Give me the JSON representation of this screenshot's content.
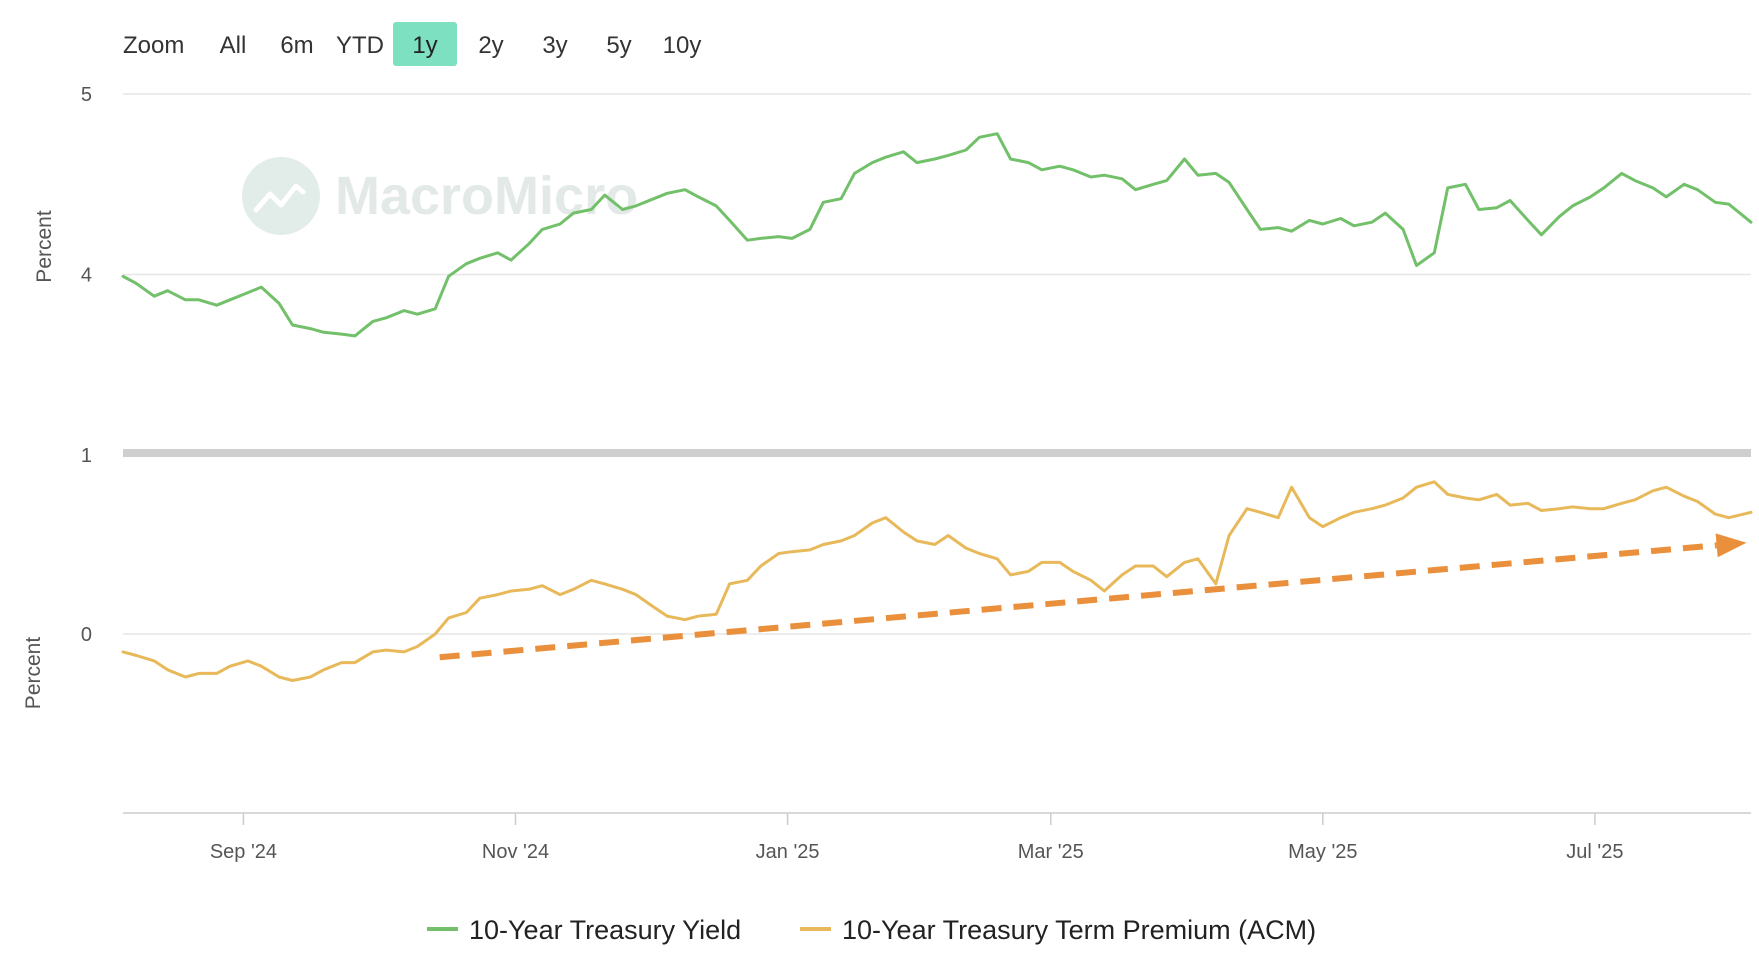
{
  "range_selector": {
    "label": "Zoom",
    "buttons": [
      {
        "label": "All",
        "active": false
      },
      {
        "label": "6m",
        "active": false
      },
      {
        "label": "YTD",
        "active": false
      },
      {
        "label": "1y",
        "active": true
      },
      {
        "label": "2y",
        "active": false
      },
      {
        "label": "3y",
        "active": false
      },
      {
        "label": "5y",
        "active": false
      },
      {
        "label": "10y",
        "active": false
      }
    ],
    "active_color": "#7de0c0"
  },
  "watermark": {
    "text": "MacroMicro",
    "color": "#dfe7e4",
    "icon": "chart-line-logo-icon"
  },
  "chart_data": [
    {
      "type": "line",
      "pane": "top",
      "ylabel": "Percent",
      "ylim": [
        3,
        5
      ],
      "yticks": [
        "5",
        "4"
      ],
      "xlim": [
        "2024-08-05",
        "2025-08-05"
      ],
      "grid": true,
      "series": [
        {
          "name": "10-Year Treasury Yield",
          "color": "#72c06a",
          "points": [
            [
              "2024-08-05",
              3.99
            ],
            [
              "2024-08-08",
              3.95
            ],
            [
              "2024-08-12",
              3.88
            ],
            [
              "2024-08-15",
              3.91
            ],
            [
              "2024-08-19",
              3.86
            ],
            [
              "2024-08-22",
              3.86
            ],
            [
              "2024-08-26",
              3.83
            ],
            [
              "2024-08-29",
              3.86
            ],
            [
              "2024-09-02",
              3.9
            ],
            [
              "2024-09-05",
              3.93
            ],
            [
              "2024-09-09",
              3.84
            ],
            [
              "2024-09-12",
              3.72
            ],
            [
              "2024-09-16",
              3.7
            ],
            [
              "2024-09-19",
              3.68
            ],
            [
              "2024-09-23",
              3.67
            ],
            [
              "2024-09-26",
              3.66
            ],
            [
              "2024-09-30",
              3.74
            ],
            [
              "2024-10-03",
              3.76
            ],
            [
              "2024-10-07",
              3.8
            ],
            [
              "2024-10-10",
              3.78
            ],
            [
              "2024-10-14",
              3.81
            ],
            [
              "2024-10-17",
              3.99
            ],
            [
              "2024-10-21",
              4.06
            ],
            [
              "2024-10-24",
              4.09
            ],
            [
              "2024-10-28",
              4.12
            ],
            [
              "2024-10-31",
              4.08
            ],
            [
              "2024-11-04",
              4.17
            ],
            [
              "2024-11-07",
              4.25
            ],
            [
              "2024-11-11",
              4.28
            ],
            [
              "2024-11-14",
              4.34
            ],
            [
              "2024-11-18",
              4.36
            ],
            [
              "2024-11-21",
              4.44
            ],
            [
              "2024-11-25",
              4.36
            ],
            [
              "2024-11-28",
              4.38
            ],
            [
              "2024-12-02",
              4.42
            ],
            [
              "2024-12-05",
              4.45
            ],
            [
              "2024-12-09",
              4.47
            ],
            [
              "2024-12-12",
              4.43
            ],
            [
              "2024-12-16",
              4.38
            ],
            [
              "2024-12-19",
              4.3
            ],
            [
              "2024-12-23",
              4.19
            ],
            [
              "2024-12-26",
              4.2
            ],
            [
              "2024-12-30",
              4.21
            ],
            [
              "2025-01-02",
              4.2
            ],
            [
              "2025-01-06",
              4.25
            ],
            [
              "2025-01-09",
              4.4
            ],
            [
              "2025-01-13",
              4.42
            ],
            [
              "2025-01-16",
              4.56
            ],
            [
              "2025-01-20",
              4.62
            ],
            [
              "2025-01-23",
              4.65
            ],
            [
              "2025-01-27",
              4.68
            ],
            [
              "2025-01-30",
              4.62
            ],
            [
              "2025-02-03",
              4.64
            ],
            [
              "2025-02-06",
              4.66
            ],
            [
              "2025-02-10",
              4.69
            ],
            [
              "2025-02-13",
              4.76
            ],
            [
              "2025-02-17",
              4.78
            ],
            [
              "2025-02-20",
              4.64
            ],
            [
              "2025-02-24",
              4.62
            ],
            [
              "2025-02-27",
              4.58
            ],
            [
              "2025-03-03",
              4.6
            ],
            [
              "2025-03-06",
              4.58
            ],
            [
              "2025-03-10",
              4.54
            ],
            [
              "2025-03-13",
              4.55
            ],
            [
              "2025-03-17",
              4.53
            ],
            [
              "2025-03-20",
              4.47
            ],
            [
              "2025-03-24",
              4.5
            ],
            [
              "2025-03-27",
              4.52
            ],
            [
              "2025-03-31",
              4.64
            ],
            [
              "2025-04-03",
              4.55
            ],
            [
              "2025-04-07",
              4.56
            ],
            [
              "2025-04-10",
              4.51
            ],
            [
              "2025-04-14",
              4.36
            ],
            [
              "2025-04-17",
              4.25
            ],
            [
              "2025-04-21",
              4.26
            ],
            [
              "2025-04-24",
              4.24
            ],
            [
              "2025-04-28",
              4.3
            ],
            [
              "2025-05-01",
              4.28
            ],
            [
              "2025-05-05",
              4.31
            ],
            [
              "2025-05-08",
              4.27
            ],
            [
              "2025-05-12",
              4.29
            ],
            [
              "2025-05-15",
              4.34
            ],
            [
              "2025-05-19",
              4.25
            ],
            [
              "2025-05-22",
              4.05
            ],
            [
              "2025-05-26",
              4.12
            ],
            [
              "2025-05-29",
              4.48
            ],
            [
              "2025-06-02",
              4.5
            ],
            [
              "2025-06-05",
              4.36
            ],
            [
              "2025-06-09",
              4.37
            ],
            [
              "2025-06-12",
              4.41
            ],
            [
              "2025-06-16",
              4.3
            ],
            [
              "2025-06-19",
              4.22
            ],
            [
              "2025-06-23",
              4.32
            ],
            [
              "2025-06-26",
              4.38
            ],
            [
              "2025-06-30",
              4.43
            ],
            [
              "2025-07-03",
              4.48
            ],
            [
              "2025-07-07",
              4.56
            ],
            [
              "2025-07-10",
              4.52
            ],
            [
              "2025-07-14",
              4.48
            ],
            [
              "2025-07-17",
              4.43
            ],
            [
              "2025-07-21",
              4.5
            ],
            [
              "2025-07-24",
              4.47
            ],
            [
              "2025-07-28",
              4.4
            ],
            [
              "2025-07-31",
              4.39
            ],
            [
              "2025-08-05",
              4.29
            ]
          ]
        }
      ]
    },
    {
      "type": "line",
      "pane": "bottom",
      "ylabel": "Percent",
      "ylim": [
        -1,
        1
      ],
      "yticks": [
        "1",
        "0"
      ],
      "xlim": [
        "2024-08-05",
        "2025-08-05"
      ],
      "xticks": [
        "Sep '24",
        "Nov '24",
        "Jan '25",
        "Mar '25",
        "May '25",
        "Jul '25"
      ],
      "grid": true,
      "series": [
        {
          "name": "10-Year Treasury Term Premium (ACM)",
          "color": "#e8b95a",
          "points": [
            [
              "2024-08-05",
              -0.1
            ],
            [
              "2024-08-08",
              -0.12
            ],
            [
              "2024-08-12",
              -0.15
            ],
            [
              "2024-08-15",
              -0.2
            ],
            [
              "2024-08-19",
              -0.24
            ],
            [
              "2024-08-22",
              -0.22
            ],
            [
              "2024-08-26",
              -0.22
            ],
            [
              "2024-08-29",
              -0.18
            ],
            [
              "2024-09-02",
              -0.15
            ],
            [
              "2024-09-05",
              -0.18
            ],
            [
              "2024-09-09",
              -0.24
            ],
            [
              "2024-09-12",
              -0.26
            ],
            [
              "2024-09-16",
              -0.24
            ],
            [
              "2024-09-19",
              -0.2
            ],
            [
              "2024-09-23",
              -0.16
            ],
            [
              "2024-09-26",
              -0.16
            ],
            [
              "2024-09-30",
              -0.1
            ],
            [
              "2024-10-03",
              -0.09
            ],
            [
              "2024-10-07",
              -0.1
            ],
            [
              "2024-10-10",
              -0.07
            ],
            [
              "2024-10-14",
              0.0
            ],
            [
              "2024-10-17",
              0.09
            ],
            [
              "2024-10-21",
              0.12
            ],
            [
              "2024-10-24",
              0.2
            ],
            [
              "2024-10-28",
              0.22
            ],
            [
              "2024-10-31",
              0.24
            ],
            [
              "2024-11-04",
              0.25
            ],
            [
              "2024-11-07",
              0.27
            ],
            [
              "2024-11-11",
              0.22
            ],
            [
              "2024-11-14",
              0.25
            ],
            [
              "2024-11-18",
              0.3
            ],
            [
              "2024-11-21",
              0.28
            ],
            [
              "2024-11-25",
              0.25
            ],
            [
              "2024-11-28",
              0.22
            ],
            [
              "2024-12-02",
              0.15
            ],
            [
              "2024-12-05",
              0.1
            ],
            [
              "2024-12-09",
              0.08
            ],
            [
              "2024-12-12",
              0.1
            ],
            [
              "2024-12-16",
              0.11
            ],
            [
              "2024-12-19",
              0.28
            ],
            [
              "2024-12-23",
              0.3
            ],
            [
              "2024-12-26",
              0.38
            ],
            [
              "2024-12-30",
              0.45
            ],
            [
              "2025-01-02",
              0.46
            ],
            [
              "2025-01-06",
              0.47
            ],
            [
              "2025-01-09",
              0.5
            ],
            [
              "2025-01-13",
              0.52
            ],
            [
              "2025-01-16",
              0.55
            ],
            [
              "2025-01-20",
              0.62
            ],
            [
              "2025-01-23",
              0.65
            ],
            [
              "2025-01-27",
              0.57
            ],
            [
              "2025-01-30",
              0.52
            ],
            [
              "2025-02-03",
              0.5
            ],
            [
              "2025-02-06",
              0.55
            ],
            [
              "2025-02-10",
              0.48
            ],
            [
              "2025-02-13",
              0.45
            ],
            [
              "2025-02-17",
              0.42
            ],
            [
              "2025-02-20",
              0.33
            ],
            [
              "2025-02-24",
              0.35
            ],
            [
              "2025-02-27",
              0.4
            ],
            [
              "2025-03-03",
              0.4
            ],
            [
              "2025-03-06",
              0.35
            ],
            [
              "2025-03-10",
              0.3
            ],
            [
              "2025-03-13",
              0.24
            ],
            [
              "2025-03-17",
              0.33
            ],
            [
              "2025-03-20",
              0.38
            ],
            [
              "2025-03-24",
              0.38
            ],
            [
              "2025-03-27",
              0.32
            ],
            [
              "2025-03-31",
              0.4
            ],
            [
              "2025-04-03",
              0.42
            ],
            [
              "2025-04-07",
              0.28
            ],
            [
              "2025-04-10",
              0.55
            ],
            [
              "2025-04-14",
              0.7
            ],
            [
              "2025-04-17",
              0.68
            ],
            [
              "2025-04-21",
              0.65
            ],
            [
              "2025-04-24",
              0.82
            ],
            [
              "2025-04-28",
              0.65
            ],
            [
              "2025-05-01",
              0.6
            ],
            [
              "2025-05-05",
              0.65
            ],
            [
              "2025-05-08",
              0.68
            ],
            [
              "2025-05-12",
              0.7
            ],
            [
              "2025-05-15",
              0.72
            ],
            [
              "2025-05-19",
              0.76
            ],
            [
              "2025-05-22",
              0.82
            ],
            [
              "2025-05-26",
              0.85
            ],
            [
              "2025-05-29",
              0.78
            ],
            [
              "2025-06-02",
              0.76
            ],
            [
              "2025-06-05",
              0.75
            ],
            [
              "2025-06-09",
              0.78
            ],
            [
              "2025-06-12",
              0.72
            ],
            [
              "2025-06-16",
              0.73
            ],
            [
              "2025-06-19",
              0.69
            ],
            [
              "2025-06-23",
              0.7
            ],
            [
              "2025-06-26",
              0.71
            ],
            [
              "2025-06-30",
              0.7
            ],
            [
              "2025-07-03",
              0.7
            ],
            [
              "2025-07-07",
              0.73
            ],
            [
              "2025-07-10",
              0.75
            ],
            [
              "2025-07-14",
              0.8
            ],
            [
              "2025-07-17",
              0.82
            ],
            [
              "2025-07-21",
              0.77
            ],
            [
              "2025-07-24",
              0.74
            ],
            [
              "2025-07-28",
              0.67
            ],
            [
              "2025-07-31",
              0.65
            ],
            [
              "2025-08-05",
              0.68
            ]
          ]
        }
      ],
      "annotations": [
        {
          "type": "trend-arrow",
          "style": "dashed",
          "color": "#ea8f3c",
          "from": [
            "2024-10-15",
            -0.13
          ],
          "to": [
            "2025-08-04",
            0.51
          ]
        }
      ]
    }
  ],
  "legend": {
    "placement": "bottom-center",
    "items": [
      {
        "label": "10-Year Treasury Yield",
        "color": "#72c06a"
      },
      {
        "label": "10-Year Treasury Term Premium (ACM)",
        "color": "#e8b95a"
      }
    ]
  }
}
